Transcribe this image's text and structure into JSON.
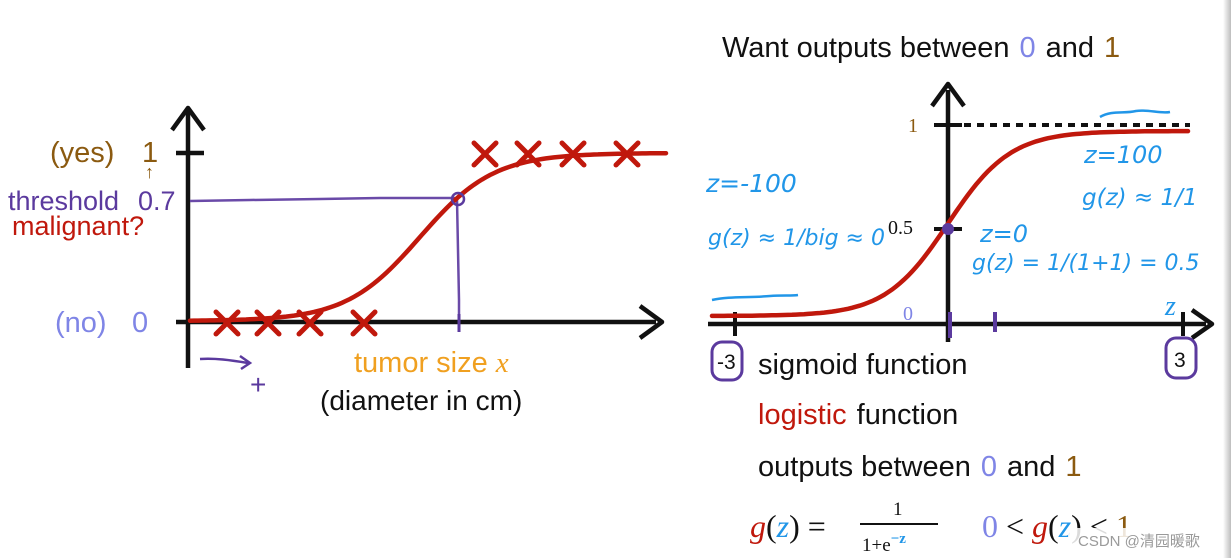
{
  "left_plot": {
    "yes_label": "(yes)",
    "one_label": "1",
    "threshold_label": "threshold",
    "threshold_value": "0.7",
    "malignant_label": "malignant?",
    "no_label": "(no)",
    "zero_label": "0",
    "x_label": "tumor size",
    "x_symbol": "x",
    "x_sublabel": "(diameter in cm)",
    "plus_mark": "+",
    "up_arrow": "↑",
    "threshold": 0.7,
    "x_count_low": 4,
    "x_count_high": 4
  },
  "right_plot": {
    "title_prefix": "Want outputs between",
    "title_zero": "0",
    "title_and": "and",
    "title_one": "1",
    "y_tick_one": "1",
    "y_tick_half": "0.5",
    "x_origin": "0",
    "x_axis_symbol": "z",
    "left_tick": "-3",
    "right_tick": "3",
    "anno_z_neg": "z=-100",
    "anno_g_neg": "g(z) ≈ 1/big ≈ 0",
    "anno_z_pos": "z=100",
    "anno_g_pos": "g(z) ≈ 1/1",
    "anno_z_zero": "z=0",
    "anno_g_zero": "g(z) = 1/(1+1) = 0.5"
  },
  "text_block": {
    "line1": "sigmoid function",
    "line2_red": "logistic",
    "line2_rest": "function",
    "line3_prefix": "outputs between",
    "line3_zero": "0",
    "line3_and": "and",
    "line3_one": "1",
    "formula_g": "g",
    "formula_z": "z",
    "formula_num": "1",
    "formula_den_prefix": "1+e",
    "formula_den_exp": "−z",
    "ineq_zero": "0",
    "ineq_lt1": "<",
    "ineq_g": "g",
    "ineq_z": "z",
    "ineq_lt2": "<",
    "ineq_one": "1"
  },
  "watermark": "CSDN @清园暖歌",
  "colors": {
    "black": "#111111",
    "red": "#c0180c",
    "brown": "#8b5a10",
    "purple": "#5b3a9e",
    "lavender": "#7f85e6",
    "orange": "#f0a020",
    "blue": "#2196e8",
    "zblue": "#3aa0e8"
  }
}
